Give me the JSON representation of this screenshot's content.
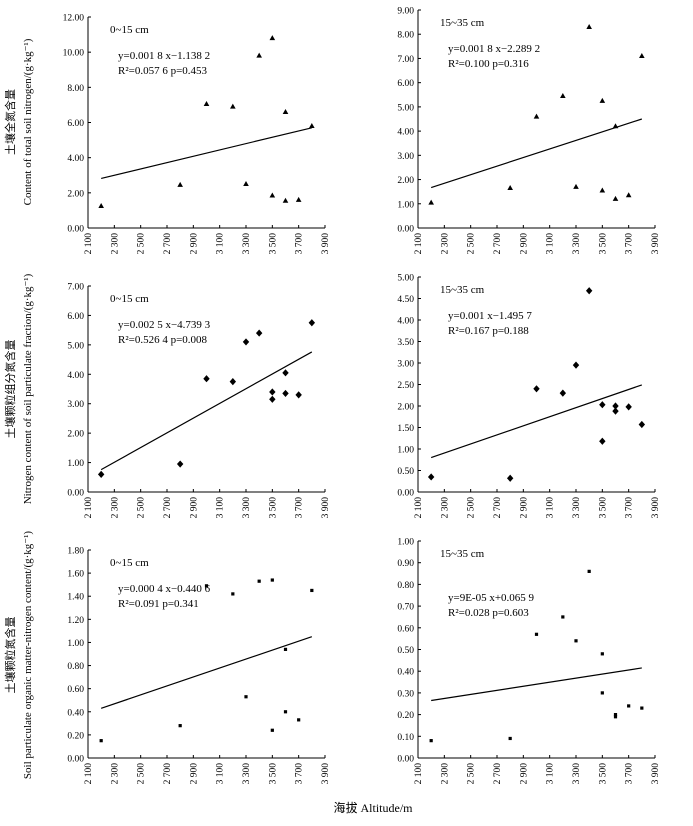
{
  "figure": {
    "x_axis_label": "海拔 Altitude/m",
    "row_labels": [
      {
        "zh": "土壤全氮含量",
        "en": "Content of total soil nitrogen/(g·kg⁻¹)"
      },
      {
        "zh": "土壤颗粒组分氮含量",
        "en": "Nitrogen content of soil particulate fraction/(g·kg⁻¹)"
      },
      {
        "zh": "土壤颗粒氮含量",
        "en": "Soil particulate organic matter-nitrogen content/(g·kg⁻¹)"
      }
    ]
  },
  "colors": {
    "marker": "#000000",
    "axis": "#000000",
    "line": "#000000",
    "background": "#ffffff"
  },
  "chart_data": [
    {
      "type": "scatter",
      "panel": "a1",
      "title": "0~15 cm",
      "marker": "triangle",
      "xlim": [
        2100,
        3900
      ],
      "ylim": [
        0,
        12
      ],
      "x_ticks": [
        2100,
        2300,
        2500,
        2700,
        2900,
        3100,
        3300,
        3500,
        3700,
        3900
      ],
      "x_tick_labels": [
        "2 100",
        "2 300",
        "2 500",
        "2 700",
        "2 900",
        "3 100",
        "3 300",
        "3 500",
        "3 700",
        "3 900"
      ],
      "y_ticks": [
        0,
        2,
        4,
        6,
        8,
        10,
        12
      ],
      "y_tick_labels": [
        "0.00",
        "2.00",
        "4.00",
        "6.00",
        "8.00",
        "10.00",
        "12.00"
      ],
      "x": [
        2200,
        2800,
        3000,
        3200,
        3300,
        3400,
        3500,
        3500,
        3600,
        3600,
        3700,
        3800
      ],
      "y": [
        1.25,
        2.45,
        7.05,
        6.9,
        2.5,
        9.8,
        10.8,
        1.85,
        6.6,
        1.55,
        1.6,
        5.8
      ],
      "trendline": {
        "x": [
          2200,
          3800
        ],
        "y": [
          2.82,
          5.7
        ]
      },
      "equation": "y=0.001 8 x−1.138 2",
      "stats": "R²=0.057 6  p=0.453"
    },
    {
      "type": "scatter",
      "panel": "a2",
      "title": "15~35 cm",
      "marker": "triangle",
      "xlim": [
        2100,
        3900
      ],
      "ylim": [
        0,
        9
      ],
      "x_ticks": [
        2100,
        2300,
        2500,
        2700,
        2900,
        3100,
        3300,
        3500,
        3700,
        3900
      ],
      "x_tick_labels": [
        "2 100",
        "2 300",
        "2 500",
        "2 700",
        "2 900",
        "3 100",
        "3 300",
        "3 500",
        "3 700",
        "3 900"
      ],
      "y_ticks": [
        0,
        1,
        2,
        3,
        4,
        5,
        6,
        7,
        8,
        9
      ],
      "y_tick_labels": [
        "0.00",
        "1.00",
        "2.00",
        "3.00",
        "4.00",
        "5.00",
        "6.00",
        "7.00",
        "8.00",
        "9.00"
      ],
      "x": [
        2200,
        2800,
        3000,
        3200,
        3300,
        3400,
        3500,
        3500,
        3600,
        3600,
        3700,
        3800
      ],
      "y": [
        1.05,
        1.65,
        4.6,
        5.45,
        1.7,
        8.3,
        5.25,
        1.55,
        4.2,
        1.2,
        1.35,
        7.1
      ],
      "trendline": {
        "x": [
          2200,
          3800
        ],
        "y": [
          1.67,
          4.5
        ]
      },
      "equation": "y=0.001 8 x−2.289 2",
      "stats": "R²=0.100  p=0.316"
    },
    {
      "type": "scatter",
      "panel": "b1",
      "title": "0~15 cm",
      "marker": "diamond",
      "xlim": [
        2100,
        3900
      ],
      "ylim": [
        0,
        7
      ],
      "x_ticks": [
        2100,
        2300,
        2500,
        2700,
        2900,
        3100,
        3300,
        3500,
        3700,
        3900
      ],
      "x_tick_labels": [
        "2 100",
        "2 300",
        "2 500",
        "2 700",
        "2 900",
        "3 100",
        "3 300",
        "3 500",
        "3 700",
        "3 900"
      ],
      "y_ticks": [
        0,
        1,
        2,
        3,
        4,
        5,
        6,
        7
      ],
      "y_tick_labels": [
        "0.00",
        "1.00",
        "2.00",
        "3.00",
        "4.00",
        "5.00",
        "6.00",
        "7.00"
      ],
      "x": [
        2200,
        2800,
        3000,
        3200,
        3300,
        3400,
        3500,
        3500,
        3600,
        3600,
        3700,
        3800
      ],
      "y": [
        0.6,
        0.95,
        3.85,
        3.75,
        5.1,
        5.4,
        3.4,
        3.15,
        4.05,
        3.35,
        3.3,
        5.75
      ],
      "trendline": {
        "x": [
          2200,
          3800
        ],
        "y": [
          0.76,
          4.76
        ]
      },
      "equation": "y=0.002 5 x−4.739 3",
      "stats": "R²=0.526 4  p=0.008"
    },
    {
      "type": "scatter",
      "panel": "b2",
      "title": "15~35 cm",
      "marker": "diamond",
      "xlim": [
        2100,
        3900
      ],
      "ylim": [
        0,
        5
      ],
      "x_ticks": [
        2100,
        2300,
        2500,
        2700,
        2900,
        3100,
        3300,
        3500,
        3700,
        3900
      ],
      "x_tick_labels": [
        "2 100",
        "2 300",
        "2 500",
        "2 700",
        "2 900",
        "3 100",
        "3 300",
        "3 500",
        "3 700",
        "3 900"
      ],
      "y_ticks": [
        0,
        0.5,
        1,
        1.5,
        2,
        2.5,
        3,
        3.5,
        4,
        4.5,
        5
      ],
      "y_tick_labels": [
        "0.00",
        "0.50",
        "1.00",
        "1.50",
        "2.00",
        "2.50",
        "3.00",
        "3.50",
        "4.00",
        "4.50",
        "5.00"
      ],
      "x": [
        2200,
        2800,
        3000,
        3200,
        3300,
        3400,
        3500,
        3500,
        3600,
        3600,
        3700,
        3800
      ],
      "y": [
        0.35,
        0.32,
        2.4,
        2.3,
        2.95,
        4.68,
        2.03,
        1.18,
        2.0,
        1.88,
        1.98,
        1.57
      ],
      "trendline": {
        "x": [
          2200,
          3800
        ],
        "y": [
          0.8,
          2.49
        ]
      },
      "equation": "y=0.001 x−1.495 7",
      "stats": "R²=0.167  p=0.188"
    },
    {
      "type": "scatter",
      "panel": "c1",
      "title": "0~15 cm",
      "marker": "square",
      "xlim": [
        2100,
        3900
      ],
      "ylim": [
        0,
        1.8
      ],
      "x_ticks": [
        2100,
        2300,
        2500,
        2700,
        2900,
        3100,
        3300,
        3500,
        3700,
        3900
      ],
      "x_tick_labels": [
        "2 100",
        "2 300",
        "2 500",
        "2 700",
        "2 900",
        "3 100",
        "3 300",
        "3 500",
        "3 700",
        "3 900"
      ],
      "y_ticks": [
        0,
        0.2,
        0.4,
        0.6,
        0.8,
        1.0,
        1.2,
        1.4,
        1.6,
        1.8
      ],
      "y_tick_labels": [
        "0.00",
        "0.20",
        "0.40",
        "0.60",
        "0.80",
        "1.00",
        "1.20",
        "1.40",
        "1.60",
        "1.80"
      ],
      "x": [
        2200,
        2800,
        3000,
        3200,
        3300,
        3400,
        3500,
        3500,
        3600,
        3600,
        3700,
        3800
      ],
      "y": [
        0.15,
        0.28,
        1.49,
        1.42,
        0.53,
        1.53,
        1.54,
        0.24,
        0.94,
        0.4,
        0.33,
        1.45
      ],
      "trendline": {
        "x": [
          2200,
          3800
        ],
        "y": [
          0.43,
          1.05
        ]
      },
      "equation": "y=0.000 4 x−0.440 6",
      "stats": "R²=0.091  p=0.341"
    },
    {
      "type": "scatter",
      "panel": "c2",
      "title": "15~35 cm",
      "marker": "square",
      "xlim": [
        2100,
        3900
      ],
      "ylim": [
        0,
        1.0
      ],
      "x_ticks": [
        2100,
        2300,
        2500,
        2700,
        2900,
        3100,
        3300,
        3500,
        3700,
        3900
      ],
      "x_tick_labels": [
        "2 100",
        "2 300",
        "2 500",
        "2 700",
        "2 900",
        "3 100",
        "3 300",
        "3 500",
        "3 700",
        "3 900"
      ],
      "y_ticks": [
        0,
        0.1,
        0.2,
        0.3,
        0.4,
        0.5,
        0.6,
        0.7,
        0.8,
        0.9,
        1.0
      ],
      "y_tick_labels": [
        "0.00",
        "0.10",
        "0.20",
        "0.30",
        "0.40",
        "0.50",
        "0.60",
        "0.70",
        "0.80",
        "0.90",
        "1.00"
      ],
      "x": [
        2200,
        2800,
        3000,
        3200,
        3300,
        3400,
        3500,
        3500,
        3600,
        3600,
        3700,
        3800
      ],
      "y": [
        0.08,
        0.09,
        0.57,
        0.65,
        0.54,
        0.86,
        0.48,
        0.3,
        0.2,
        0.19,
        0.24,
        0.23
      ],
      "trendline": {
        "x": [
          2200,
          3800
        ],
        "y": [
          0.265,
          0.415
        ]
      },
      "equation": "y=9E-05 x+0.065 9",
      "stats": "R²=0.028  p=0.603"
    }
  ]
}
